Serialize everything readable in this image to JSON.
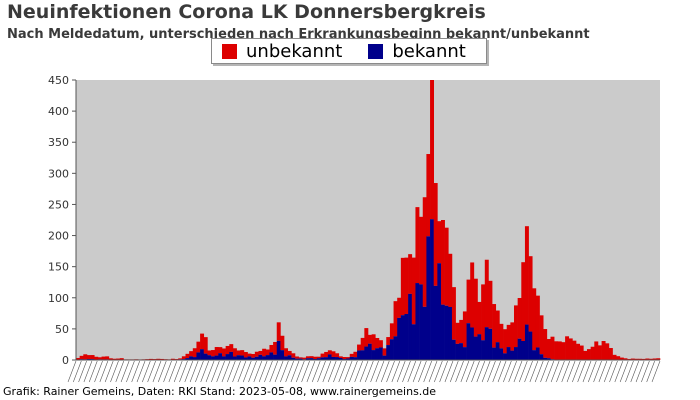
{
  "header": {
    "title": "Neuinfektionen Corona LK Donnersbergkreis",
    "subtitle": "Nach Meldedatum, unterschieden nach Erkrankungsbeginn bekannt/unbekannt"
  },
  "footer": {
    "text": "Grafik: Rainer Gemeins, Daten: RKI Stand: 2023-05-08, www.rainergemeins.de"
  },
  "chart_data": {
    "type": "bar",
    "stacked": true,
    "title": "Neuinfektionen Corona LK Donnersbergkreis",
    "subtitle": "Nach Meldedatum, unterschieden nach Erkrankungsbeginn bekannt/unbekannt",
    "ylim": [
      0,
      450
    ],
    "yticks": [
      0,
      50,
      100,
      150,
      200,
      250,
      300,
      350,
      400,
      450
    ],
    "grid": false,
    "legend_position": "top-center",
    "bar_count": 160,
    "series": [
      {
        "name": "unbekannt",
        "color": "#dd0000"
      },
      {
        "name": "bekannt",
        "color": "#00008b"
      }
    ],
    "anchors_total": [
      [
        0,
        3
      ],
      [
        2,
        8
      ],
      [
        4,
        10
      ],
      [
        6,
        6
      ],
      [
        8,
        4
      ],
      [
        10,
        7
      ],
      [
        12,
        3
      ],
      [
        14,
        2
      ],
      [
        16,
        3
      ],
      [
        18,
        1
      ],
      [
        20,
        1
      ],
      [
        24,
        1
      ],
      [
        30,
        2
      ],
      [
        34,
        1
      ],
      [
        36,
        2
      ],
      [
        38,
        1
      ],
      [
        40,
        7
      ],
      [
        42,
        10
      ],
      [
        44,
        20
      ],
      [
        46,
        36
      ],
      [
        47,
        38
      ],
      [
        48,
        40
      ],
      [
        49,
        22
      ],
      [
        50,
        14
      ],
      [
        52,
        18
      ],
      [
        54,
        22
      ],
      [
        56,
        20
      ],
      [
        58,
        24
      ],
      [
        60,
        18
      ],
      [
        62,
        14
      ],
      [
        64,
        12
      ],
      [
        66,
        10
      ],
      [
        68,
        12
      ],
      [
        70,
        20
      ],
      [
        72,
        16
      ],
      [
        74,
        26
      ],
      [
        75,
        45
      ],
      [
        76,
        68
      ],
      [
        77,
        40
      ],
      [
        78,
        20
      ],
      [
        79,
        14
      ],
      [
        80,
        18
      ],
      [
        82,
        6
      ],
      [
        84,
        4
      ],
      [
        86,
        5
      ],
      [
        88,
        6
      ],
      [
        90,
        5
      ],
      [
        92,
        8
      ],
      [
        94,
        14
      ],
      [
        96,
        18
      ],
      [
        98,
        8
      ],
      [
        100,
        5
      ],
      [
        102,
        5
      ],
      [
        104,
        10
      ],
      [
        106,
        25
      ],
      [
        108,
        40
      ],
      [
        110,
        50
      ],
      [
        112,
        38
      ],
      [
        114,
        30
      ],
      [
        116,
        22
      ],
      [
        118,
        45
      ],
      [
        120,
        95
      ],
      [
        122,
        140
      ],
      [
        124,
        160
      ],
      [
        126,
        180
      ],
      [
        128,
        210
      ],
      [
        130,
        240
      ],
      [
        131,
        285
      ],
      [
        132,
        350
      ],
      [
        133,
        380
      ],
      [
        134,
        420
      ],
      [
        135,
        300
      ],
      [
        136,
        210
      ],
      [
        137,
        295
      ],
      [
        138,
        200
      ],
      [
        139,
        180
      ],
      [
        140,
        230
      ],
      [
        141,
        150
      ],
      [
        142,
        120
      ],
      [
        143,
        60
      ],
      [
        144,
        45
      ],
      [
        146,
        90
      ],
      [
        148,
        150
      ],
      [
        150,
        130
      ],
      [
        152,
        100
      ],
      [
        154,
        140
      ],
      [
        155,
        160
      ],
      [
        156,
        120
      ],
      [
        158,
        80
      ],
      [
        160,
        50
      ],
      [
        162,
        60
      ],
      [
        164,
        55
      ],
      [
        166,
        100
      ],
      [
        168,
        150
      ],
      [
        169,
        200
      ],
      [
        170,
        195
      ],
      [
        171,
        160
      ],
      [
        172,
        140
      ],
      [
        173,
        110
      ],
      [
        174,
        80
      ],
      [
        176,
        55
      ],
      [
        178,
        35
      ],
      [
        180,
        30
      ],
      [
        182,
        32
      ],
      [
        184,
        30
      ],
      [
        186,
        38
      ],
      [
        188,
        30
      ],
      [
        190,
        20
      ],
      [
        192,
        16
      ],
      [
        194,
        20
      ],
      [
        196,
        28
      ],
      [
        198,
        30
      ],
      [
        200,
        25
      ],
      [
        202,
        12
      ],
      [
        204,
        5
      ],
      [
        206,
        3
      ],
      [
        208,
        2
      ],
      [
        212,
        2
      ],
      [
        216,
        2
      ],
      [
        219,
        3
      ]
    ],
    "anchors_bekannt_fraction": [
      [
        0,
        0.15
      ],
      [
        40,
        0.3
      ],
      [
        44,
        0.35
      ],
      [
        50,
        0.4
      ],
      [
        70,
        0.45
      ],
      [
        78,
        0.4
      ],
      [
        100,
        0.45
      ],
      [
        110,
        0.5
      ],
      [
        118,
        0.55
      ],
      [
        124,
        0.5
      ],
      [
        130,
        0.45
      ],
      [
        136,
        0.55
      ],
      [
        140,
        0.4
      ],
      [
        150,
        0.35
      ],
      [
        160,
        0.3
      ],
      [
        170,
        0.25
      ],
      [
        176,
        0.1
      ],
      [
        180,
        0.02
      ],
      [
        219,
        0.0
      ]
    ],
    "anchor_index_max": 219
  }
}
